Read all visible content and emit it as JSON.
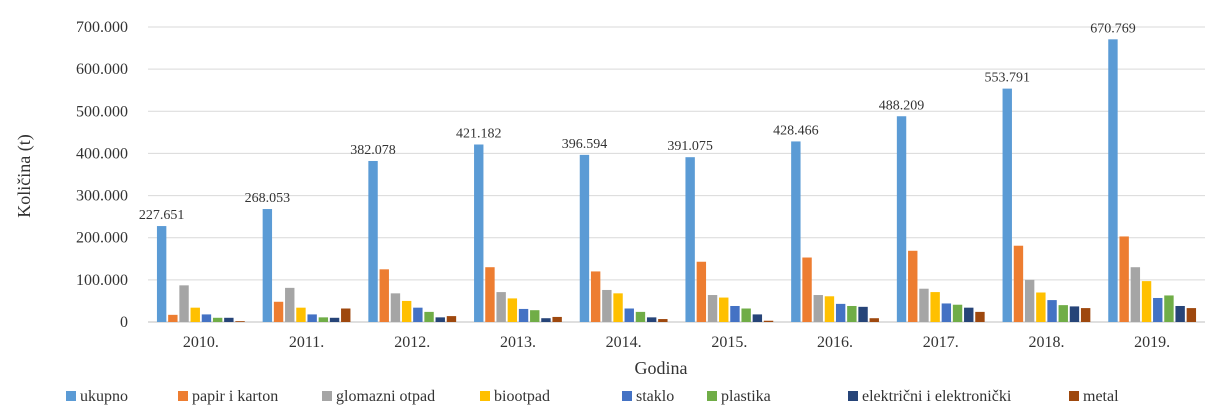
{
  "chart_data": {
    "type": "bar",
    "title": "",
    "xlabel": "Godina",
    "ylabel": "Količina (t)",
    "ylim": [
      0,
      700000
    ],
    "yticks": [
      0,
      100000,
      200000,
      300000,
      400000,
      500000,
      600000,
      700000
    ],
    "ytick_labels": [
      "0",
      "100.000",
      "200.000",
      "300.000",
      "400.000",
      "500.000",
      "600.000",
      "700.000"
    ],
    "categories": [
      "2010.",
      "2011.",
      "2012.",
      "2013.",
      "2014.",
      "2015.",
      "2016.",
      "2017.",
      "2018.",
      "2019."
    ],
    "grid": true,
    "legend_position": "bottom",
    "series": [
      {
        "name": "ukupno",
        "color": "#5b9bd5",
        "values": [
          227651,
          268053,
          382078,
          421182,
          396594,
          391075,
          428466,
          488209,
          553791,
          670769
        ]
      },
      {
        "name": "papir i karton",
        "color": "#ed7d31",
        "values": [
          17000,
          48000,
          125000,
          130000,
          120000,
          143000,
          153000,
          169000,
          181000,
          203000
        ]
      },
      {
        "name": "glomazni otpad",
        "color": "#a5a5a5",
        "values": [
          87000,
          81000,
          68000,
          71000,
          76000,
          64000,
          64000,
          79000,
          100000,
          130000
        ]
      },
      {
        "name": "biootpad",
        "color": "#ffc000",
        "values": [
          34000,
          34000,
          50000,
          56000,
          68000,
          58000,
          61000,
          71000,
          70000,
          97000
        ]
      },
      {
        "name": "staklo",
        "color": "#4472c4",
        "values": [
          18000,
          18000,
          34000,
          31000,
          32000,
          38000,
          43000,
          44000,
          52000,
          57000
        ]
      },
      {
        "name": "plastika",
        "color": "#70ad47",
        "values": [
          10000,
          11000,
          24000,
          28000,
          24000,
          32000,
          38000,
          41000,
          40000,
          63000
        ]
      },
      {
        "name": "električni i elektronički",
        "color": "#264478",
        "values": [
          10000,
          10000,
          11000,
          9000,
          11000,
          18000,
          36000,
          34000,
          37000,
          38000
        ]
      },
      {
        "name": "metal",
        "color": "#9e480e",
        "values": [
          2000,
          32000,
          14000,
          12000,
          7000,
          3000,
          9000,
          24000,
          33000,
          33000
        ]
      }
    ],
    "data_labels": [
      "227.651",
      "268.053",
      "382.078",
      "421.182",
      "396.594",
      "391.075",
      "428.466",
      "488.209",
      "553.791",
      "670.769"
    ]
  }
}
